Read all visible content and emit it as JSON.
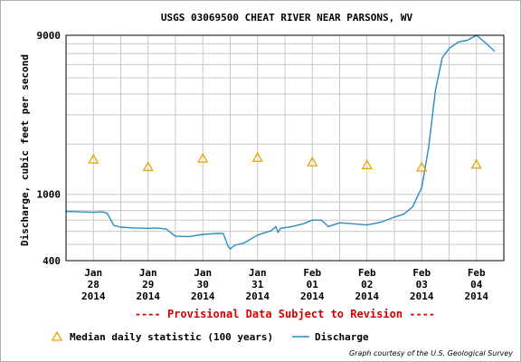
{
  "chart_data": {
    "type": "line",
    "title": "USGS 03069500 CHEAT RIVER NEAR PARSONS, WV",
    "ylabel": "Discharge, cubic feet per second",
    "xlabel": "",
    "y_scale": "log",
    "ylim": [
      400,
      9000
    ],
    "y_ticks": [
      {
        "value": 400,
        "label": "400"
      },
      {
        "value": 1000,
        "label": "1000"
      },
      {
        "value": 9000,
        "label": "9000"
      }
    ],
    "x_range": [
      "2014-01-27T12:00",
      "2014-02-04T12:00"
    ],
    "x_ticks": [
      {
        "t": "2014-01-28T00:00",
        "lines": [
          "Jan",
          "28",
          "2014"
        ]
      },
      {
        "t": "2014-01-29T00:00",
        "lines": [
          "Jan",
          "29",
          "2014"
        ]
      },
      {
        "t": "2014-01-30T00:00",
        "lines": [
          "Jan",
          "30",
          "2014"
        ]
      },
      {
        "t": "2014-01-31T00:00",
        "lines": [
          "Jan",
          "31",
          "2014"
        ]
      },
      {
        "t": "2014-02-01T00:00",
        "lines": [
          "Feb",
          "01",
          "2014"
        ]
      },
      {
        "t": "2014-02-02T00:00",
        "lines": [
          "Feb",
          "02",
          "2014"
        ]
      },
      {
        "t": "2014-02-03T00:00",
        "lines": [
          "Feb",
          "03",
          "2014"
        ]
      },
      {
        "t": "2014-02-04T00:00",
        "lines": [
          "Feb",
          "04",
          "2014"
        ]
      }
    ],
    "grid": true,
    "series": [
      {
        "name": "Discharge",
        "color": "#2b8cbe",
        "points": [
          [
            "2014-01-27T12:00",
            790
          ],
          [
            "2014-01-27T18:00",
            785
          ],
          [
            "2014-01-28T00:00",
            780
          ],
          [
            "2014-01-28T04:00",
            785
          ],
          [
            "2014-01-28T06:00",
            770
          ],
          [
            "2014-01-28T09:00",
            650
          ],
          [
            "2014-01-28T12:00",
            635
          ],
          [
            "2014-01-28T18:00",
            628
          ],
          [
            "2014-01-29T00:00",
            625
          ],
          [
            "2014-01-29T04:00",
            628
          ],
          [
            "2014-01-29T08:00",
            618
          ],
          [
            "2014-01-29T12:00",
            560
          ],
          [
            "2014-01-29T18:00",
            558
          ],
          [
            "2014-01-30T00:00",
            575
          ],
          [
            "2014-01-30T06:00",
            582
          ],
          [
            "2014-01-30T09:00",
            582
          ],
          [
            "2014-01-30T11:00",
            490
          ],
          [
            "2014-01-30T12:00",
            470
          ],
          [
            "2014-01-30T14:00",
            495
          ],
          [
            "2014-01-30T18:00",
            510
          ],
          [
            "2014-01-31T00:00",
            570
          ],
          [
            "2014-01-31T06:00",
            605
          ],
          [
            "2014-01-31T08:00",
            640
          ],
          [
            "2014-01-31T09:00",
            590
          ],
          [
            "2014-01-31T10:00",
            625
          ],
          [
            "2014-01-31T15:00",
            640
          ],
          [
            "2014-01-31T20:00",
            665
          ],
          [
            "2014-02-01T00:00",
            700
          ],
          [
            "2014-02-01T04:00",
            700
          ],
          [
            "2014-02-01T07:00",
            640
          ],
          [
            "2014-02-01T12:00",
            675
          ],
          [
            "2014-02-01T18:00",
            665
          ],
          [
            "2014-02-02T00:00",
            655
          ],
          [
            "2014-02-02T06:00",
            680
          ],
          [
            "2014-02-02T12:00",
            730
          ],
          [
            "2014-02-02T16:00",
            760
          ],
          [
            "2014-02-02T20:00",
            840
          ],
          [
            "2014-02-03T00:00",
            1100
          ],
          [
            "2014-02-03T03:00",
            1900
          ],
          [
            "2014-02-03T06:00",
            4200
          ],
          [
            "2014-02-03T09:00",
            6600
          ],
          [
            "2014-02-03T12:00",
            7500
          ],
          [
            "2014-02-03T16:00",
            8200
          ],
          [
            "2014-02-03T20:00",
            8400
          ],
          [
            "2014-02-04T00:00",
            9000
          ],
          [
            "2014-02-04T04:00",
            8100
          ],
          [
            "2014-02-04T08:00",
            7200
          ]
        ]
      }
    ],
    "markers": [
      {
        "name": "Median daily statistic (100 years)",
        "color": "#e8a400",
        "points": [
          [
            "2014-01-28T00:00",
            1620
          ],
          [
            "2014-01-29T00:00",
            1460
          ],
          [
            "2014-01-30T00:00",
            1640
          ],
          [
            "2014-01-31T00:00",
            1660
          ],
          [
            "2014-02-01T00:00",
            1560
          ],
          [
            "2014-02-02T00:00",
            1500
          ],
          [
            "2014-02-03T00:00",
            1450
          ],
          [
            "2014-02-04T00:00",
            1510
          ]
        ]
      }
    ],
    "legend_position": "bottom",
    "notice": "---- Provisional Data Subject to Revision ----",
    "credit": "Graph courtesy of the U.S. Geological Survey"
  },
  "colors": {
    "gridline": "#c8c8c8",
    "notice": "#d40000"
  }
}
